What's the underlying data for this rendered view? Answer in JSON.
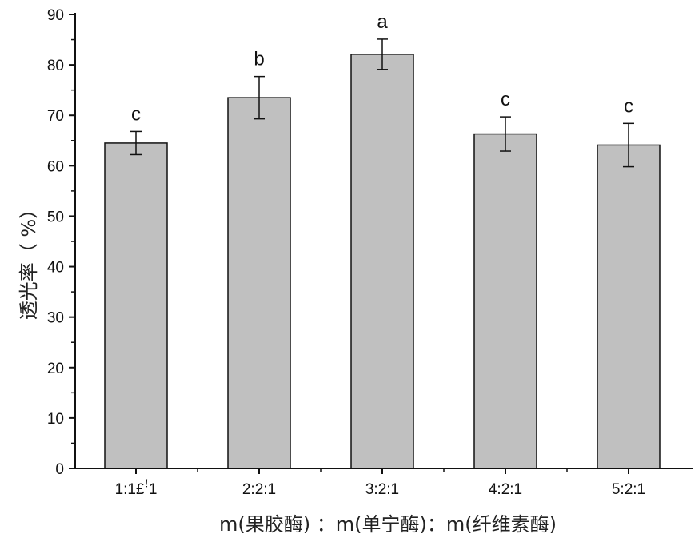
{
  "chart_data": {
    "type": "bar",
    "categories": [
      "1:1£ꜝ1",
      "2:2:1",
      "3:2:1",
      "4:2:1",
      "5:2:1"
    ],
    "values": [
      64.5,
      73.5,
      82.1,
      66.3,
      64.1
    ],
    "errors": [
      2.3,
      4.2,
      3.0,
      3.4,
      4.3
    ],
    "significance": [
      "c",
      "b",
      "a",
      "c",
      "c"
    ],
    "xlabel": "m(果胶酶) ：m(单宁酶)：m(纤维素酶)",
    "ylabel": "透光率（ %）",
    "ylim": [
      0,
      90
    ],
    "yticks": [
      0,
      10,
      20,
      30,
      40,
      50,
      60,
      70,
      80,
      90
    ],
    "bar_color": "#c0c0c0",
    "grid": false
  }
}
